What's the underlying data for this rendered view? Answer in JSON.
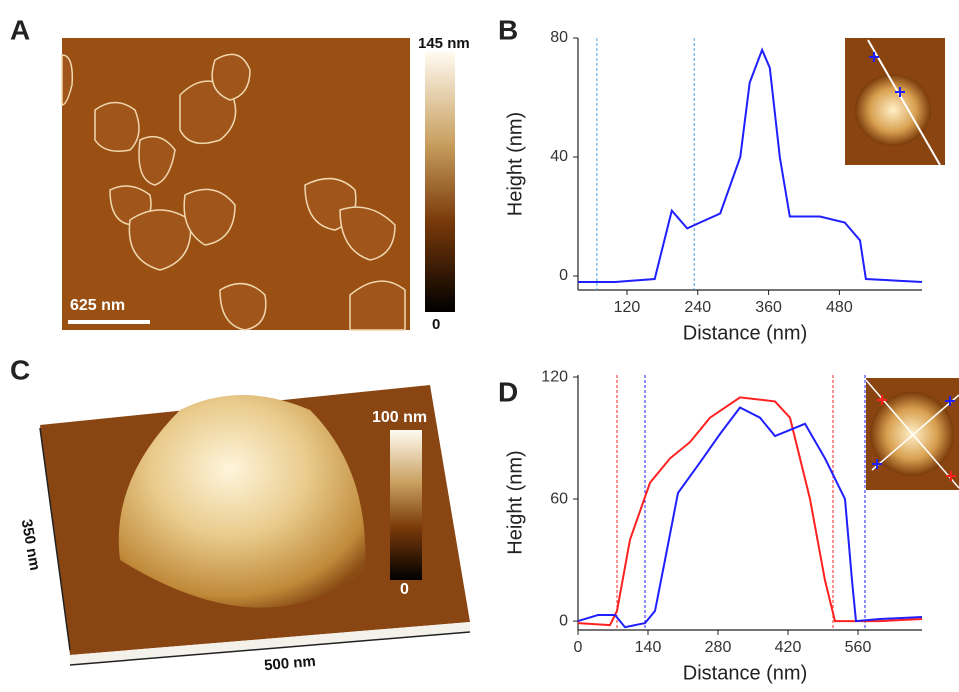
{
  "chart_data": [
    {
      "type": "image",
      "panel": "A",
      "scale_bar": "625 nm",
      "colorbar_labels": [
        "145 nm",
        "0"
      ]
    },
    {
      "type": "line",
      "panel": "B",
      "xlabel": "Distance (nm)",
      "ylabel": "Height (nm)",
      "xlim": [
        37,
        620
      ],
      "ylim": [
        -4.7,
        80
      ],
      "xticks": [
        120,
        240,
        360,
        480
      ],
      "yticks": [
        0,
        40,
        80
      ],
      "series": [
        {
          "color": "#1f1fff",
          "x": [
            37,
            100,
            167,
            196,
            222,
            244,
            278,
            312,
            328,
            349,
            362,
            379,
            396,
            447,
            489,
            515,
            525,
            620
          ],
          "values": [
            -2,
            -2,
            -1,
            22,
            16,
            18,
            21,
            40,
            65,
            76,
            70,
            40,
            20,
            20,
            18,
            12,
            -1,
            -2
          ]
        }
      ],
      "reference_lines": [
        {
          "x": 69,
          "color": "#4aa3df"
        },
        {
          "x": 234,
          "color": "#4aa3df"
        }
      ]
    },
    {
      "type": "image",
      "panel": "C",
      "axis_labels": [
        "350 nm",
        "500 nm"
      ],
      "colorbar_labels": [
        "100 nm",
        "0"
      ]
    },
    {
      "type": "line",
      "panel": "D",
      "xlabel": "Distance (nm)",
      "ylabel": "Height (nm)",
      "xlim": [
        0,
        688
      ],
      "ylim": [
        -4.4,
        121
      ],
      "xticks": [
        0,
        140,
        280,
        420,
        560
      ],
      "yticks": [
        0,
        60,
        120
      ],
      "series": [
        {
          "color": "#ff2020",
          "x": [
            0,
            64,
            78,
            104,
            144,
            184,
            224,
            264,
            324,
            394,
            424,
            464,
            494,
            514,
            604,
            688
          ],
          "values": [
            -1,
            -2,
            5,
            40,
            68,
            80,
            88,
            100,
            110,
            108,
            100,
            60,
            20,
            0,
            0,
            1
          ]
        },
        {
          "color": "#1f1fff",
          "x": [
            0,
            40,
            74,
            94,
            134,
            154,
            174,
            200,
            244,
            284,
            324,
            364,
            394,
            424,
            454,
            494,
            534,
            548,
            556,
            604,
            688
          ],
          "values": [
            0,
            3,
            3,
            -3,
            -1,
            5,
            30,
            63,
            78,
            92,
            105,
            100,
            91,
            94,
            97,
            80,
            60,
            20,
            0,
            1,
            2
          ]
        }
      ],
      "reference_lines": [
        {
          "x": 78,
          "color": "#ff2020"
        },
        {
          "x": 134,
          "color": "#1f1fff"
        },
        {
          "x": 510,
          "color": "#ff2020"
        },
        {
          "x": 574,
          "color": "#1f1fff"
        }
      ]
    }
  ]
}
